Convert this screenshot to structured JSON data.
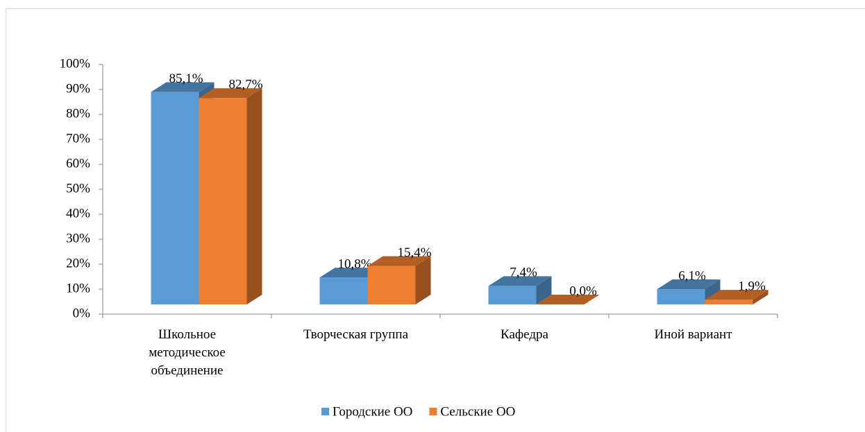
{
  "chart_data": {
    "type": "bar3d",
    "categories": [
      "Школьное методическое объединение",
      "Творческая группа",
      "Кафедра",
      "Иной вариант"
    ],
    "series": [
      {
        "name": "Городские ОО",
        "color": "#5b9bd5",
        "values": [
          85.1,
          10.8,
          7.4,
          6.1
        ],
        "value_labels": [
          "85,1%",
          "10,8%",
          "7,4%",
          "6,1%"
        ]
      },
      {
        "name": "Сельские ОО",
        "color": "#ed7d31",
        "values": [
          82.7,
          15.4,
          0.0,
          1.9
        ],
        "value_labels": [
          "82,7%",
          "15,4%",
          "0,0%",
          "1,9%"
        ]
      }
    ],
    "ylim": [
      0,
      100
    ],
    "yticks": [
      {
        "value": 0,
        "label": "0%"
      },
      {
        "value": 10,
        "label": "10%"
      },
      {
        "value": 20,
        "label": "20%"
      },
      {
        "value": 30,
        "label": "30%"
      },
      {
        "value": 40,
        "label": "40%"
      },
      {
        "value": 50,
        "label": "50%"
      },
      {
        "value": 60,
        "label": "60%"
      },
      {
        "value": 70,
        "label": "70%"
      },
      {
        "value": 80,
        "label": "80%"
      },
      {
        "value": 90,
        "label": "90%"
      },
      {
        "value": 100,
        "label": "100%"
      }
    ],
    "legend": "bottom"
  }
}
